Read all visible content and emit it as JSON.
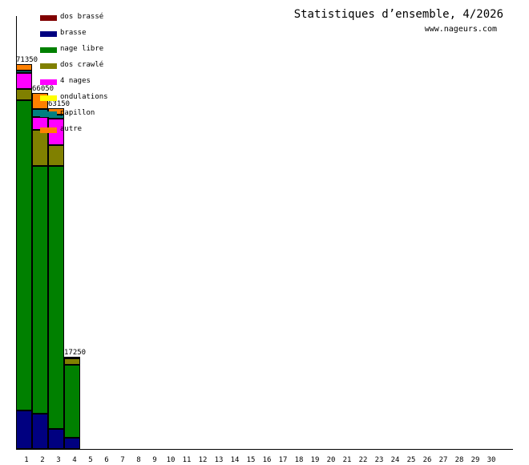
{
  "chart_data": {
    "type": "bar",
    "stacked": true,
    "title": "Statistiques d’ensemble, 4/2026",
    "subtitle": "www.nageurs.com",
    "xlabel": "",
    "ylabel": "",
    "categories": [
      "1",
      "2",
      "3",
      "4",
      "5",
      "6",
      "7",
      "8",
      "9",
      "10",
      "11",
      "12",
      "13",
      "14",
      "15",
      "16",
      "17",
      "18",
      "19",
      "20",
      "21",
      "22",
      "23",
      "24",
      "25",
      "26",
      "27",
      "28",
      "29",
      "30"
    ],
    "totals": [
      71350,
      66050,
      63150,
      17250,
      0,
      0,
      0,
      0,
      0,
      0,
      0,
      0,
      0,
      0,
      0,
      0,
      0,
      0,
      0,
      0,
      0,
      0,
      0,
      0,
      0,
      0,
      0,
      0,
      0,
      0
    ],
    "series": [
      {
        "name": "dos brassé",
        "color": "#800000",
        "values": [
          0,
          0,
          0,
          0,
          0,
          0,
          0,
          0,
          0,
          0,
          0,
          0,
          0,
          0,
          0,
          0,
          0,
          0,
          0,
          0,
          0,
          0,
          0,
          0,
          0,
          0,
          0,
          0,
          0,
          0
        ]
      },
      {
        "name": "brasse",
        "color": "#000080",
        "values": [
          7150,
          6550,
          3700,
          2100,
          0,
          0,
          0,
          0,
          0,
          0,
          0,
          0,
          0,
          0,
          0,
          0,
          0,
          0,
          0,
          0,
          0,
          0,
          0,
          0,
          0,
          0,
          0,
          0,
          0,
          0
        ]
      },
      {
        "name": "nage libre",
        "color": "#008000",
        "values": [
          57500,
          45900,
          48750,
          13600,
          0,
          0,
          0,
          0,
          0,
          0,
          0,
          0,
          0,
          0,
          0,
          0,
          0,
          0,
          0,
          0,
          0,
          0,
          0,
          0,
          0,
          0,
          0,
          0,
          0,
          0
        ]
      },
      {
        "name": "dos crawlé",
        "color": "#808000",
        "values": [
          2100,
          6700,
          3850,
          1250,
          0,
          0,
          0,
          0,
          0,
          0,
          0,
          0,
          0,
          0,
          0,
          0,
          0,
          0,
          0,
          0,
          0,
          0,
          0,
          0,
          0,
          0,
          0,
          0,
          0,
          0
        ]
      },
      {
        "name": "4 nages",
        "color": "#ff00ff",
        "values": [
          3000,
          2400,
          4900,
          300,
          0,
          0,
          0,
          0,
          0,
          0,
          0,
          0,
          0,
          0,
          0,
          0,
          0,
          0,
          0,
          0,
          0,
          0,
          0,
          0,
          0,
          0,
          0,
          0,
          0,
          0
        ]
      },
      {
        "name": "ondulations",
        "color": "#ffff00",
        "values": [
          0,
          0,
          0,
          0,
          0,
          0,
          0,
          0,
          0,
          0,
          0,
          0,
          0,
          0,
          0,
          0,
          0,
          0,
          0,
          0,
          0,
          0,
          0,
          0,
          0,
          0,
          0,
          0,
          0,
          0
        ]
      },
      {
        "name": "papillon",
        "color": "#008080",
        "values": [
          450,
          1500,
          750,
          0,
          0,
          0,
          0,
          0,
          0,
          0,
          0,
          0,
          0,
          0,
          0,
          0,
          0,
          0,
          0,
          0,
          0,
          0,
          0,
          0,
          0,
          0,
          0,
          0,
          0,
          0
        ]
      },
      {
        "name": "autre",
        "color": "#ff8000",
        "values": [
          1150,
          3000,
          1200,
          0,
          0,
          0,
          0,
          0,
          0,
          0,
          0,
          0,
          0,
          0,
          0,
          0,
          0,
          0,
          0,
          0,
          0,
          0,
          0,
          0,
          0,
          0,
          0,
          0,
          0,
          0
        ]
      }
    ],
    "ylim": [
      0,
      71350
    ],
    "grid": false,
    "legend_position": "top-left inside"
  },
  "labels": {
    "title": "Statistiques d’ensemble, 4/2026",
    "subtitle": "www.nageurs.com",
    "totals": [
      "71350",
      "66050",
      "63150",
      "17250"
    ]
  }
}
